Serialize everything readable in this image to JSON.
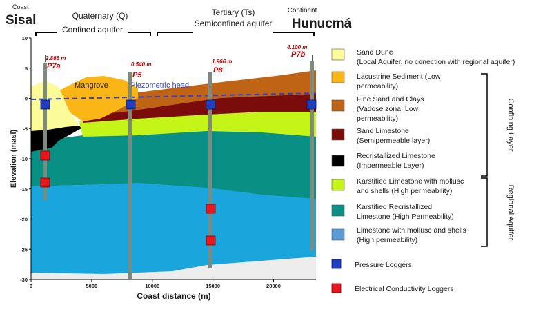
{
  "header": {
    "coast_label": "Coast",
    "coast_city": "Sisal",
    "quaternary_title": "Quaternary (Q)",
    "quaternary_subtitle": "Confined aquifer",
    "tertiary_title": "Tertiary (Ts)",
    "tertiary_subtitle": "Semiconfined aquifer",
    "continent_label": "Continent",
    "continent_city": "Hunucmá"
  },
  "plot": {
    "ylabel": "Elevation (masl)",
    "xlabel": "Coast distance (m)",
    "xlim": [
      0,
      23500
    ],
    "ylim": [
      -30,
      10
    ],
    "x_ticks": [
      "0",
      "5000",
      "10000",
      "15000",
      "20000"
    ],
    "y_ticks": [
      "10",
      "5",
      "0",
      "-5",
      "-10",
      "-15",
      "-20",
      "-25",
      "-30"
    ],
    "mangrove_label": "Mangrove",
    "piezometric_label": "Piezometric head"
  },
  "wells": [
    {
      "id": "P7a",
      "name": "P7a",
      "depth": "2.886 m",
      "x": 1000
    },
    {
      "id": "P5",
      "name": "P5",
      "depth": "0.540 m",
      "x": 7800
    },
    {
      "id": "P8",
      "name": "P8",
      "depth": "1.966 m",
      "x": 14700
    },
    {
      "id": "P7b",
      "name": "P7b",
      "depth": "4.100 m",
      "x": 22800
    }
  ],
  "legend": {
    "items": [
      {
        "line1": "Sand Dune",
        "line2": "(Local Aquifer, no conection with regional aquifer)",
        "color": "#fbfb9a"
      },
      {
        "line1": "Lacustrine Sediment (Low",
        "line2": "permeability)",
        "color": "#f9b616"
      },
      {
        "line1": "Fine Sand and Clays",
        "line2": "(Vadose zona, Low",
        "line3": "permeability)",
        "color": "#bf6414"
      },
      {
        "line1": "Sand Limestone",
        "line2": "(Semipermeable layer)",
        "color": "#7a0c0c"
      },
      {
        "line1": "Recristallized Limestone",
        "line2": "(Impermeable Layer)",
        "color": "#000000"
      },
      {
        "line1": "Karstified Limestone with mollusc",
        "line2": "and shells (High permeability)",
        "color": "#c5f518"
      },
      {
        "line1": "Karstified Recristallized",
        "line2": "Limestone (High Permeability)",
        "color": "#0a8f84"
      },
      {
        "line1": "Limestone with mollusc and shells",
        "line2": "(High permeability)",
        "color": "#5b9bd5"
      }
    ],
    "confining_label": "Confining Layer",
    "regional_label": "Regional Aquifer",
    "pressure_label": "Pressure Loggers",
    "conductivity_label": "Electrical Conductivity Loggers",
    "pressure_color": "#1f3fbf",
    "conductivity_color": "#e8171e"
  }
}
